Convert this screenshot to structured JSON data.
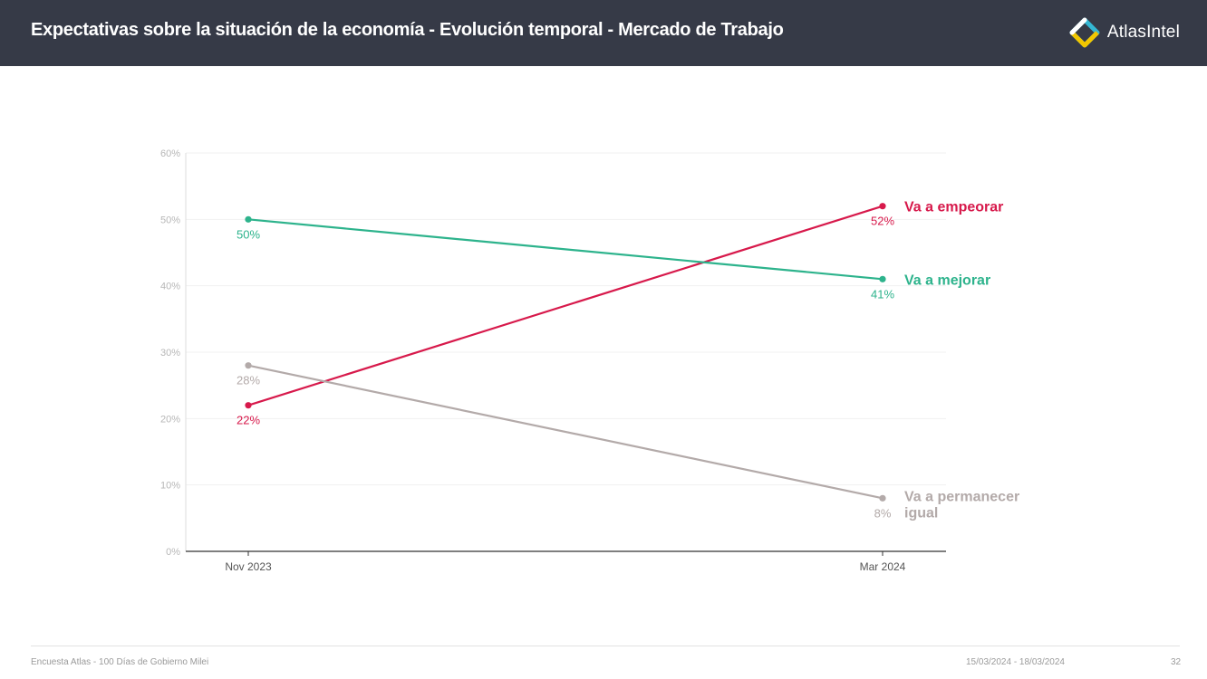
{
  "header": {
    "title": "Expectativas sobre la situación de la economía - Evolución temporal - Mercado de Trabajo",
    "brand": "AtlasIntel"
  },
  "chart_data": {
    "type": "line",
    "x": [
      "Nov 2023",
      "Mar 2024"
    ],
    "y_ticks": [
      "0%",
      "10%",
      "20%",
      "30%",
      "40%",
      "50%",
      "60%"
    ],
    "ylim": [
      0,
      60
    ],
    "grid": true,
    "series": [
      {
        "name": "Va a empeorar",
        "values": [
          22,
          52
        ],
        "labels": [
          "22%",
          "52%"
        ],
        "color": "#d7194b",
        "legend_lines": [
          "Va a empeorar"
        ]
      },
      {
        "name": "Va a mejorar",
        "values": [
          50,
          41
        ],
        "labels": [
          "50%",
          "41%"
        ],
        "color": "#2db38c",
        "legend_lines": [
          "Va a mejorar"
        ]
      },
      {
        "name": "Va a permanecer igual",
        "values": [
          28,
          8
        ],
        "labels": [
          "28%",
          "8%"
        ],
        "color": "#b3aaa9",
        "legend_lines": [
          "Va a permanecer",
          "igual"
        ]
      }
    ]
  },
  "footer": {
    "source": "Encuesta Atlas - 100 Días de Gobierno Milei",
    "dates": "15/03/2024 - 18/03/2024",
    "page": "32"
  }
}
